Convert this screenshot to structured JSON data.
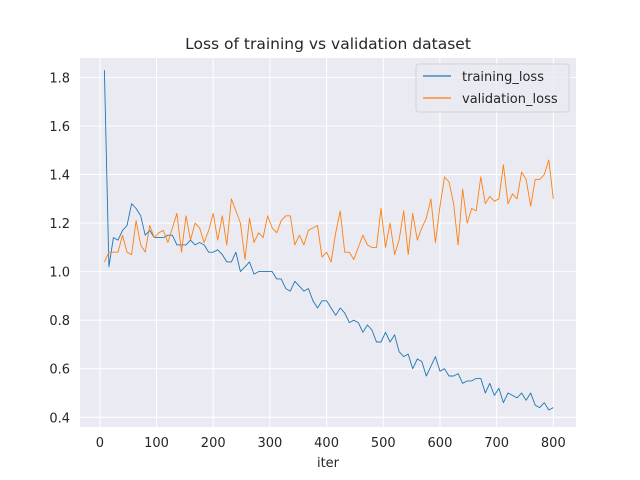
{
  "chart_data": {
    "type": "line",
    "title": "Loss of training vs validation dataset",
    "xlabel": "iter",
    "ylabel": "",
    "xlim": [
      -35,
      840
    ],
    "ylim": [
      0.36,
      1.88
    ],
    "xticks": [
      0,
      100,
      200,
      300,
      400,
      500,
      600,
      700,
      800
    ],
    "yticks": [
      0.4,
      0.6,
      0.8,
      1.0,
      1.2,
      1.4,
      1.6,
      1.8
    ],
    "xtick_labels": [
      "0",
      "100",
      "200",
      "300",
      "400",
      "500",
      "600",
      "700",
      "800"
    ],
    "ytick_labels": [
      "0.4",
      "0.6",
      "0.8",
      "1.0",
      "1.2",
      "1.4",
      "1.6",
      "1.8"
    ],
    "grid": true,
    "legend_position": "top-right",
    "background": "#eaeaf2",
    "series": [
      {
        "name": "training_loss",
        "color": "#1f77b4",
        "x": [
          8,
          16,
          24,
          32,
          40,
          48,
          56,
          64,
          72,
          80,
          88,
          96,
          104,
          112,
          120,
          128,
          136,
          144,
          152,
          160,
          168,
          176,
          184,
          192,
          200,
          208,
          216,
          224,
          232,
          240,
          248,
          256,
          264,
          272,
          280,
          288,
          296,
          304,
          312,
          320,
          328,
          336,
          344,
          352,
          360,
          368,
          376,
          384,
          392,
          400,
          408,
          416,
          424,
          432,
          440,
          448,
          456,
          464,
          472,
          480,
          488,
          496,
          504,
          512,
          520,
          528,
          536,
          544,
          552,
          560,
          568,
          576,
          584,
          592,
          600,
          608,
          616,
          624,
          632,
          640,
          648,
          656,
          664,
          672,
          680,
          688,
          696,
          704,
          712,
          720,
          728,
          736,
          744,
          752,
          760,
          768,
          776,
          784,
          792,
          800
        ],
        "y": [
          1.83,
          1.02,
          1.14,
          1.13,
          1.17,
          1.19,
          1.28,
          1.26,
          1.23,
          1.15,
          1.17,
          1.14,
          1.14,
          1.14,
          1.15,
          1.15,
          1.11,
          1.11,
          1.11,
          1.13,
          1.11,
          1.12,
          1.11,
          1.08,
          1.08,
          1.09,
          1.07,
          1.04,
          1.04,
          1.08,
          1.0,
          1.02,
          1.04,
          0.99,
          1.0,
          1.0,
          1.0,
          1.0,
          0.97,
          0.97,
          0.93,
          0.92,
          0.96,
          0.94,
          0.92,
          0.93,
          0.88,
          0.85,
          0.88,
          0.88,
          0.85,
          0.82,
          0.85,
          0.83,
          0.79,
          0.8,
          0.79,
          0.75,
          0.78,
          0.76,
          0.71,
          0.71,
          0.75,
          0.71,
          0.74,
          0.67,
          0.65,
          0.66,
          0.6,
          0.64,
          0.63,
          0.57,
          0.61,
          0.65,
          0.59,
          0.6,
          0.57,
          0.57,
          0.58,
          0.54,
          0.55,
          0.55,
          0.56,
          0.56,
          0.5,
          0.54,
          0.49,
          0.52,
          0.46,
          0.5,
          0.49,
          0.48,
          0.5,
          0.47,
          0.5,
          0.45,
          0.44,
          0.46,
          0.43,
          0.44
        ]
      },
      {
        "name": "validation_loss",
        "color": "#ff7f0e",
        "x": [
          8,
          16,
          24,
          32,
          40,
          48,
          56,
          64,
          72,
          80,
          88,
          96,
          104,
          112,
          120,
          128,
          136,
          144,
          152,
          160,
          168,
          176,
          184,
          192,
          200,
          208,
          216,
          224,
          232,
          240,
          248,
          256,
          264,
          272,
          280,
          288,
          296,
          304,
          312,
          320,
          328,
          336,
          344,
          352,
          360,
          368,
          376,
          384,
          392,
          400,
          408,
          416,
          424,
          432,
          440,
          448,
          456,
          464,
          472,
          480,
          488,
          496,
          504,
          512,
          520,
          528,
          536,
          544,
          552,
          560,
          568,
          576,
          584,
          592,
          600,
          608,
          616,
          624,
          632,
          640,
          648,
          656,
          664,
          672,
          680,
          688,
          696,
          704,
          712,
          720,
          728,
          736,
          744,
          752,
          760,
          768,
          776,
          784,
          792,
          800
        ],
        "y": [
          1.04,
          1.08,
          1.08,
          1.08,
          1.15,
          1.08,
          1.07,
          1.21,
          1.11,
          1.08,
          1.19,
          1.14,
          1.16,
          1.17,
          1.12,
          1.18,
          1.24,
          1.08,
          1.23,
          1.13,
          1.2,
          1.18,
          1.12,
          1.17,
          1.24,
          1.13,
          1.23,
          1.11,
          1.3,
          1.25,
          1.2,
          1.05,
          1.22,
          1.12,
          1.16,
          1.14,
          1.23,
          1.18,
          1.16,
          1.21,
          1.23,
          1.23,
          1.11,
          1.15,
          1.11,
          1.17,
          1.18,
          1.19,
          1.06,
          1.08,
          1.04,
          1.16,
          1.25,
          1.08,
          1.08,
          1.05,
          1.1,
          1.15,
          1.11,
          1.1,
          1.1,
          1.26,
          1.1,
          1.2,
          1.07,
          1.13,
          1.25,
          1.07,
          1.24,
          1.13,
          1.18,
          1.22,
          1.3,
          1.12,
          1.27,
          1.39,
          1.37,
          1.28,
          1.11,
          1.34,
          1.2,
          1.26,
          1.25,
          1.39,
          1.28,
          1.31,
          1.29,
          1.3,
          1.44,
          1.28,
          1.32,
          1.3,
          1.41,
          1.38,
          1.27,
          1.38,
          1.38,
          1.4,
          1.46,
          1.3
        ]
      }
    ]
  }
}
